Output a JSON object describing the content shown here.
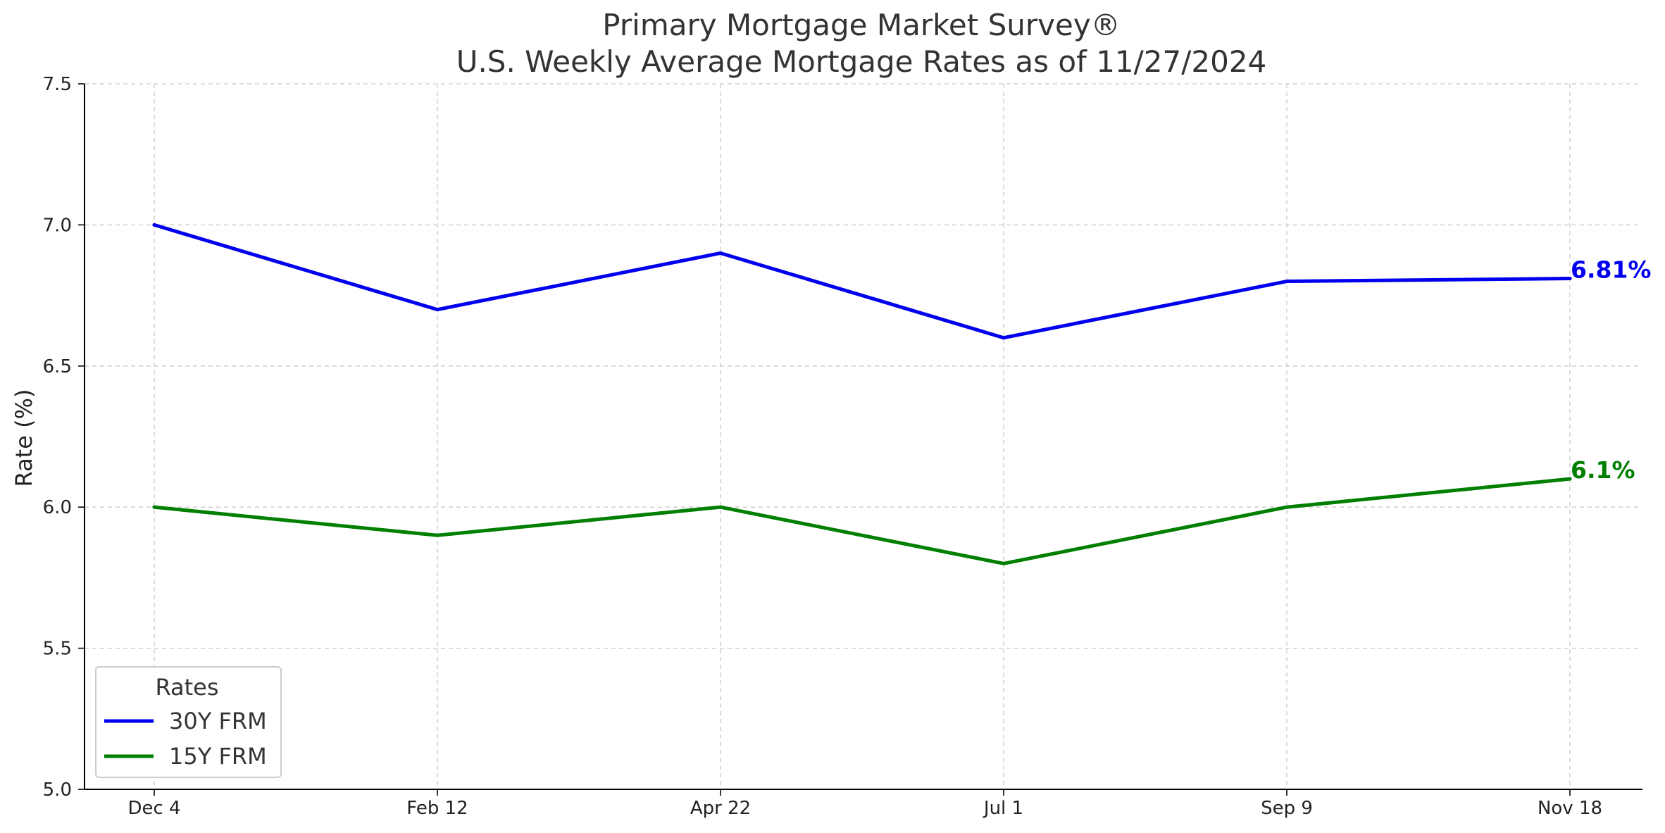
{
  "chart_data": {
    "type": "line",
    "title_line1": "Primary Mortgage Market Survey®",
    "title_line2": "U.S. Weekly Average Mortgage Rates as of 11/27/2024",
    "xlabel": "",
    "ylabel": "Rate (%)",
    "categories": [
      "Dec 4",
      "Feb 12",
      "Apr 22",
      "Jul 1",
      "Sep 9",
      "Nov 18"
    ],
    "ylim": [
      5.0,
      7.5
    ],
    "yticks": [
      5.0,
      5.5,
      6.0,
      6.5,
      7.0,
      7.5
    ],
    "ytick_labels": [
      "5.0",
      "5.5",
      "6.0",
      "6.5",
      "7.0",
      "7.5"
    ],
    "grid": true,
    "legend": {
      "title": "Rates",
      "placement": "lower-left"
    },
    "series": [
      {
        "name": "30Y FRM",
        "color": "#0000ee",
        "values": [
          7.0,
          6.7,
          6.9,
          6.6,
          6.8,
          6.81
        ],
        "end_label": "6.81%"
      },
      {
        "name": "15Y FRM",
        "color": "#007f00",
        "values": [
          6.0,
          5.9,
          6.0,
          5.8,
          6.0,
          6.1
        ],
        "end_label": "6.1%"
      }
    ]
  }
}
